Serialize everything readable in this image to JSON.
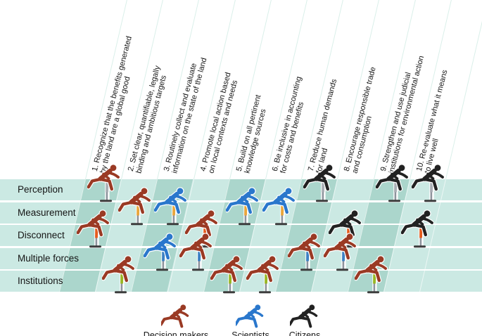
{
  "figure": {
    "columns": [
      {
        "line1": "1. Recognize that the benefits generated",
        "line2": "by the land are a global good"
      },
      {
        "line1": "2. Set clear, quantifiable, legally",
        "line2": "binding and ambitious targets"
      },
      {
        "line1": "3. Routinely collect and evaluate",
        "line2": "information on the state of the land"
      },
      {
        "line1": "4. Promote local action based",
        "line2": "on local contexts and needs"
      },
      {
        "line1": "5. Build on all pertinent",
        "line2": "knowledge sources"
      },
      {
        "line1": "6. Be inclusive in accounting",
        "line2": "for costs and benefits"
      },
      {
        "line1": "7. Reduce human demands",
        "line2": "for land"
      },
      {
        "line1": "8. Encourage responsible trade",
        "line2": "and consumption"
      },
      {
        "line1": "9. Strengthen and use judicial",
        "line2": "institutions for environmental action"
      },
      {
        "line1": "10. Re-evaluate what it means",
        "line2": "to live well"
      }
    ],
    "rows": [
      {
        "label": "Perception",
        "hurdle_color": "#a9aeb4"
      },
      {
        "label": "Measurement",
        "hurdle_color": "#e9a63c"
      },
      {
        "label": "Disconnect",
        "hurdle_color": "#e55c1d"
      },
      {
        "label": "Multiple forces",
        "hurdle_color": "#3c80c3"
      },
      {
        "label": "Institutions",
        "hurdle_color": "#99b824"
      }
    ],
    "actors": [
      {
        "id": "decision_makers",
        "label": "Decision makers",
        "color": "#9a3a24"
      },
      {
        "id": "scientists",
        "label": "Scientists",
        "color": "#2a77cc"
      },
      {
        "id": "citizens",
        "label": "Citizens",
        "color": "#222222"
      }
    ],
    "cells": [
      {
        "row": 0,
        "col": 1,
        "actor": "decision_makers"
      },
      {
        "row": 0,
        "col": 7,
        "actor": "citizens"
      },
      {
        "row": 0,
        "col": 9,
        "actor": "citizens"
      },
      {
        "row": 0,
        "col": 10,
        "actor": "citizens"
      },
      {
        "row": 1,
        "col": 2,
        "actor": "decision_makers"
      },
      {
        "row": 1,
        "col": 3,
        "actor": "scientists"
      },
      {
        "row": 1,
        "col": 5,
        "actor": "scientists"
      },
      {
        "row": 1,
        "col": 6,
        "actor": "scientists"
      },
      {
        "row": 2,
        "col": 1,
        "actor": "decision_makers"
      },
      {
        "row": 2,
        "col": 4,
        "actor": "decision_makers"
      },
      {
        "row": 2,
        "col": 8,
        "actor": "citizens"
      },
      {
        "row": 2,
        "col": 10,
        "actor": "citizens"
      },
      {
        "row": 3,
        "col": 3,
        "actor": "scientists"
      },
      {
        "row": 3,
        "col": 4,
        "actor": "decision_makers"
      },
      {
        "row": 3,
        "col": 7,
        "actor": "decision_makers"
      },
      {
        "row": 3,
        "col": 8,
        "actor": "decision_makers"
      },
      {
        "row": 4,
        "col": 2,
        "actor": "decision_makers"
      },
      {
        "row": 4,
        "col": 5,
        "actor": "decision_makers"
      },
      {
        "row": 4,
        "col": 6,
        "actor": "decision_makers"
      },
      {
        "row": 4,
        "col": 9,
        "actor": "decision_makers"
      }
    ],
    "colors": {
      "band_light": "#cbe9e3",
      "band_dark": "#abd6cc",
      "pole_lower": "#8d939c",
      "pole_foot": "#3d3d3d",
      "header_line": "#d9efe9"
    }
  }
}
